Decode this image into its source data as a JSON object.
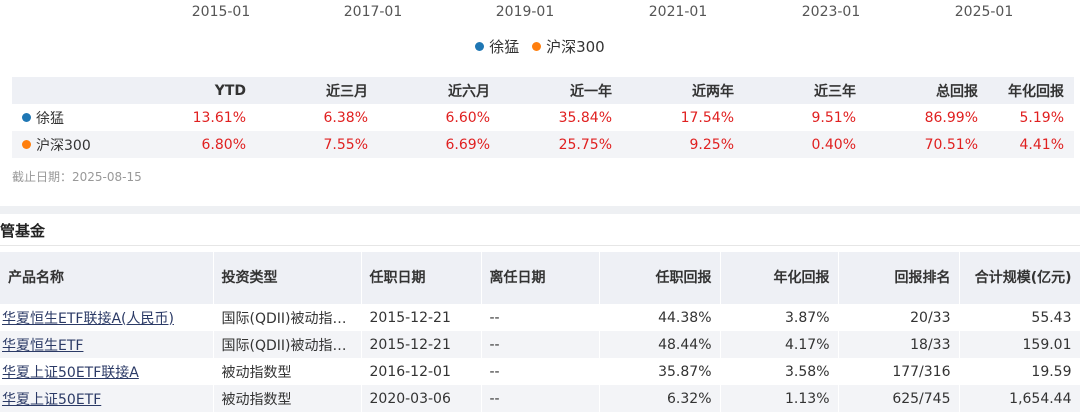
{
  "chart": {
    "x_ticks": [
      "2015-01",
      "2017-01",
      "2019-01",
      "2021-01",
      "2023-01",
      "2025-01"
    ],
    "legend": [
      {
        "name": "徐猛",
        "color": "#1f77b4"
      },
      {
        "name": "沪深300",
        "color": "#ff7f0e"
      }
    ]
  },
  "performance": {
    "headers": [
      "",
      "YTD",
      "近三月",
      "近六月",
      "近一年",
      "近两年",
      "近三年",
      "总回报",
      "年化回报"
    ],
    "rows": [
      {
        "name": "徐猛",
        "color": "#1f77b4",
        "values": [
          "13.61%",
          "6.38%",
          "6.60%",
          "35.84%",
          "17.54%",
          "9.51%",
          "86.99%",
          "5.19%"
        ]
      },
      {
        "name": "沪深300",
        "color": "#ff7f0e",
        "values": [
          "6.80%",
          "7.55%",
          "6.69%",
          "25.75%",
          "9.25%",
          "0.40%",
          "70.51%",
          "4.41%"
        ]
      }
    ],
    "as_of": "截止日期：2025-08-15"
  },
  "funds": {
    "section_title": "管基金",
    "headers": [
      "产品名称",
      "投资类型",
      "任职日期",
      "离任日期",
      "任职回报",
      "年化回报",
      "回报排名",
      "合计规模(亿元)"
    ],
    "rows": [
      [
        "华夏恒生ETF联接A(人民币)",
        "国际(QDII)被动指数型",
        "2015-12-21",
        "--",
        "44.38%",
        "3.87%",
        "20/33",
        "55.43"
      ],
      [
        "华夏恒生ETF",
        "国际(QDII)被动指数型",
        "2015-12-21",
        "--",
        "48.44%",
        "4.17%",
        "18/33",
        "159.01"
      ],
      [
        "华夏上证50ETF联接A",
        "被动指数型",
        "2016-12-01",
        "--",
        "35.87%",
        "3.58%",
        "177/316",
        "19.59"
      ],
      [
        "华夏上证50ETF",
        "被动指数型",
        "2020-03-06",
        "--",
        "6.32%",
        "1.13%",
        "625/745",
        "1,654.44"
      ]
    ]
  },
  "colors": {
    "positive": "#e02020",
    "header_bg": "#eef0f5",
    "alt_row": "#f3f4f7"
  }
}
